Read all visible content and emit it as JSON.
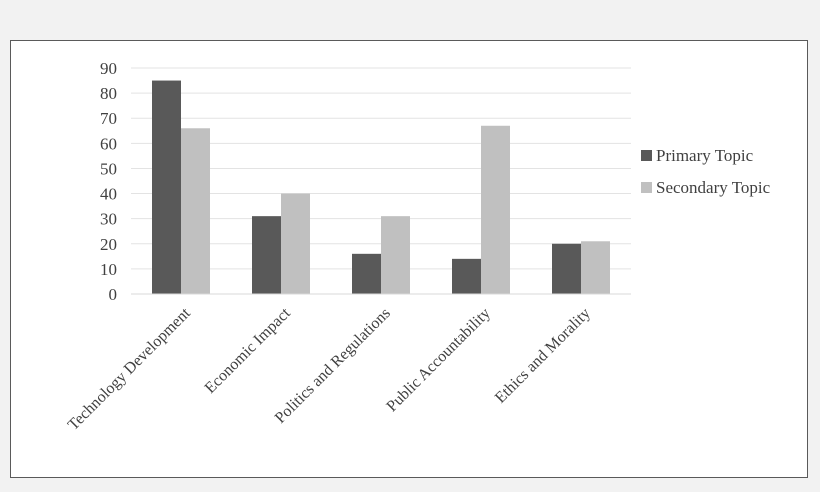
{
  "chart_data": {
    "type": "bar",
    "title": "",
    "xlabel": "",
    "ylabel": "",
    "categories": [
      "Technology Development",
      "Economic Impact",
      "Politics and Regulations",
      "Public Accountability",
      "Ethics and Morality"
    ],
    "series": [
      {
        "name": "Primary Topic",
        "color": "#595959",
        "values": [
          85,
          31,
          16,
          14,
          20
        ]
      },
      {
        "name": "Secondary Topic",
        "color": "#c0c0c0",
        "values": [
          66,
          40,
          31,
          67,
          21
        ]
      }
    ],
    "ylim": [
      0,
      90
    ],
    "yticks": [
      0,
      10,
      20,
      30,
      40,
      50,
      60,
      70,
      80,
      90
    ],
    "grid": true,
    "legend_position": "right"
  }
}
